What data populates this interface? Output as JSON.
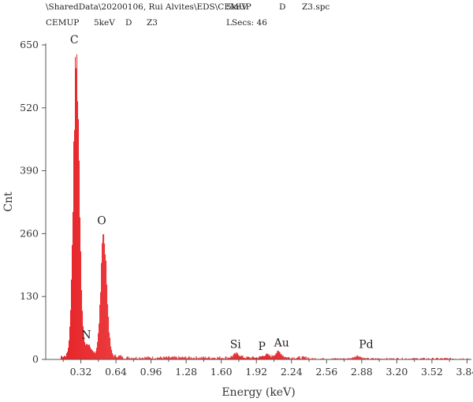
{
  "header": {
    "path": "\\SharedData\\20200106, Rui Alvites\\EDS\\CEMUP",
    "voltage": "5keV",
    "mode": "D",
    "file": "Z3.spc",
    "lab": "CEMUP",
    "voltage2": "5keV",
    "mode2": "D",
    "sample": "Z3",
    "lsecs": "LSecs: 46"
  },
  "chart_data": {
    "type": "bar",
    "xlabel": "Energy (keV)",
    "ylabel": "Cnt",
    "xlim": [
      0,
      3.88
    ],
    "ylim": [
      0,
      650
    ],
    "x_ticks": [
      0.32,
      0.64,
      0.96,
      1.28,
      1.6,
      1.92,
      2.24,
      2.56,
      2.88,
      3.2,
      3.52,
      3.84
    ],
    "x_tick_labels": [
      "0.32",
      "0.64",
      "0.96",
      "1.28",
      "1.60",
      "1.92",
      "2.24",
      "2.56",
      "2.88",
      "3.20",
      "3.52",
      "3.84"
    ],
    "y_ticks": [
      0,
      130,
      260,
      390,
      520,
      650
    ],
    "y_tick_labels": [
      "0",
      "130",
      "260",
      "390",
      "520",
      "650"
    ],
    "bar_color": "#e8262a",
    "peaks": [
      {
        "label": "C",
        "energy": 0.28,
        "counts": 642
      },
      {
        "label": "N",
        "energy": 0.39,
        "counts": 25
      },
      {
        "label": "O",
        "energy": 0.53,
        "counts": 262
      },
      {
        "label": "Si",
        "energy": 1.74,
        "counts": 8
      },
      {
        "label": "P",
        "energy": 2.01,
        "counts": 6
      },
      {
        "label": "Au",
        "energy": 2.12,
        "counts": 12
      },
      {
        "label": "Pd",
        "energy": 2.84,
        "counts": 6
      }
    ],
    "annotations": [
      {
        "text": "C",
        "x": 0.26,
        "y": 650
      },
      {
        "text": "O",
        "x": 0.51,
        "y": 276
      },
      {
        "text": "N",
        "x": 0.37,
        "y": 40
      },
      {
        "text": "Si",
        "x": 1.73,
        "y": 20
      },
      {
        "text": "P",
        "x": 1.97,
        "y": 16
      },
      {
        "text": "Au",
        "x": 2.15,
        "y": 24
      },
      {
        "text": "Pd",
        "x": 2.92,
        "y": 20
      }
    ],
    "grid": false,
    "legend": "none"
  }
}
